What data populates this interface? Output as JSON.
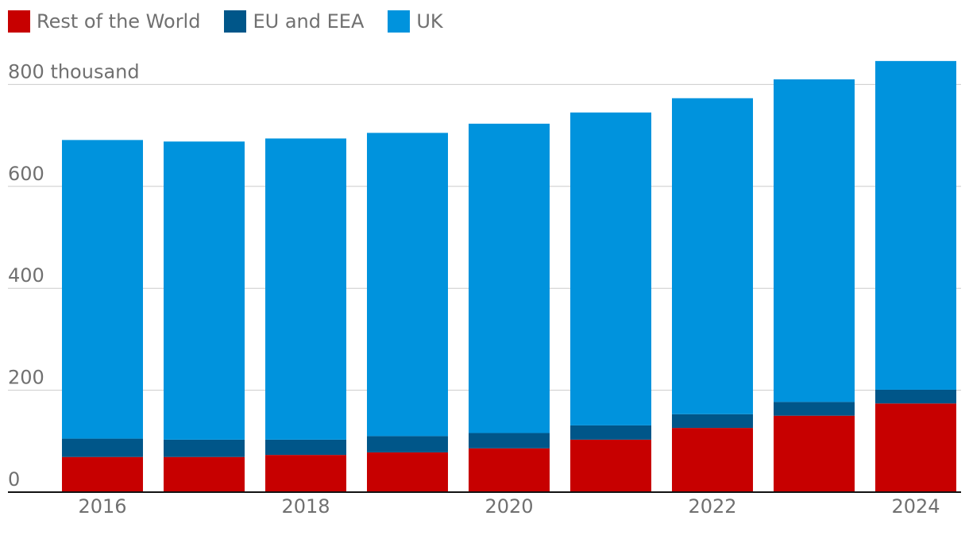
{
  "chart_data": {
    "type": "bar",
    "stacked": true,
    "categories": [
      "2016",
      "2017",
      "2018",
      "2019",
      "2020",
      "2021",
      "2022",
      "2023",
      "2024"
    ],
    "series": [
      {
        "name": "Rest of the World",
        "color": "#c70000",
        "values": [
          69,
          69,
          73,
          78,
          86,
          103,
          126,
          150,
          174
        ]
      },
      {
        "name": "EU and EEA",
        "color": "#005689",
        "values": [
          36,
          34,
          30,
          32,
          30,
          28,
          27,
          27,
          27
        ]
      },
      {
        "name": "UK",
        "color": "#0093dd",
        "values": [
          586,
          585,
          591,
          595,
          607,
          614,
          620,
          633,
          645
        ]
      }
    ],
    "y_tick_labels": [
      "0",
      "200",
      "400",
      "600",
      "800 thousand"
    ],
    "y_tick_values": [
      0,
      200,
      400,
      600,
      800
    ],
    "x_tick_labels": [
      "2016",
      "2018",
      "2020",
      "2022",
      "2024"
    ],
    "x_tick_values": [
      "2016",
      "2018",
      "2020",
      "2022",
      "2024"
    ],
    "ylim": [
      0,
      850
    ],
    "grid": true,
    "legend_position": "top-left"
  }
}
